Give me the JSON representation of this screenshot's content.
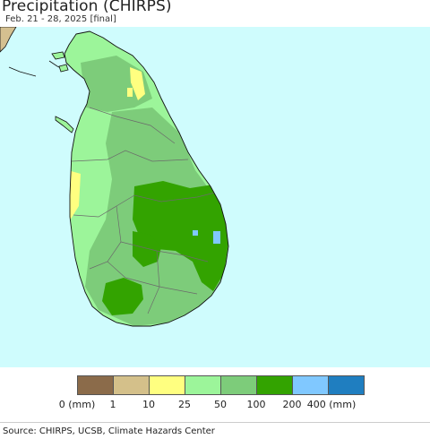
{
  "title": "Precipitation (CHIRPS)",
  "subtitle": "Feb. 21 - 28, 2025 [final]",
  "source": "Source: CHIRPS, UCSB, Climate Hazards Center",
  "colors": {
    "sea": "#cffcfd",
    "land_outside": "#d4c090",
    "boundary": "#6b6b6b",
    "coast": "#111111"
  },
  "legend": {
    "colors": [
      "#8b6b4a",
      "#d4c08a",
      "#ffff80",
      "#9cf59a",
      "#7dcc7a",
      "#33a300",
      "#80c8ff",
      "#1f7ec0"
    ],
    "tick_labels": [
      "0 (mm)",
      "1",
      "10",
      "25",
      "50",
      "100",
      "200",
      "400 (mm)"
    ]
  }
}
